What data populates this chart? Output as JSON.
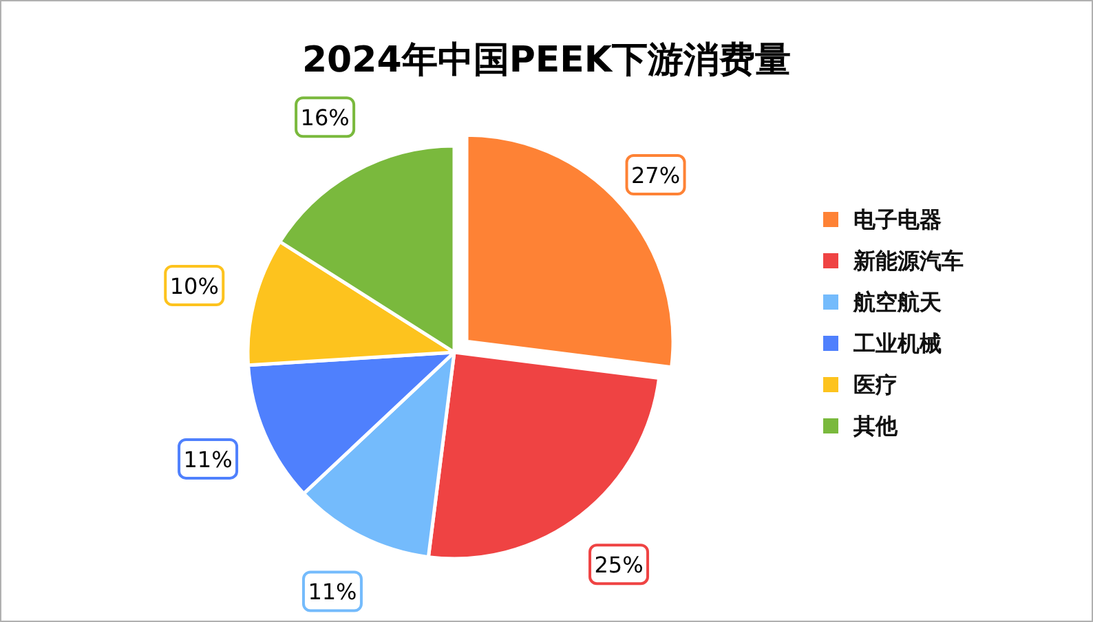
{
  "chart_data": {
    "type": "pie",
    "title": "2024年中国PEEK下游消费量",
    "categories": [
      "电子电器",
      "新能源汽车",
      "航空航天",
      "工业机械",
      "医疗",
      "其他"
    ],
    "values": [
      27,
      25,
      11,
      11,
      10,
      16
    ],
    "value_labels": [
      "27%",
      "25%",
      "11%",
      "11%",
      "10%",
      "16%"
    ],
    "colors": [
      "#fe8235",
      "#ef4343",
      "#74bbfc",
      "#4f80fd",
      "#fdc31e",
      "#7ab93d"
    ],
    "legend": "right"
  }
}
